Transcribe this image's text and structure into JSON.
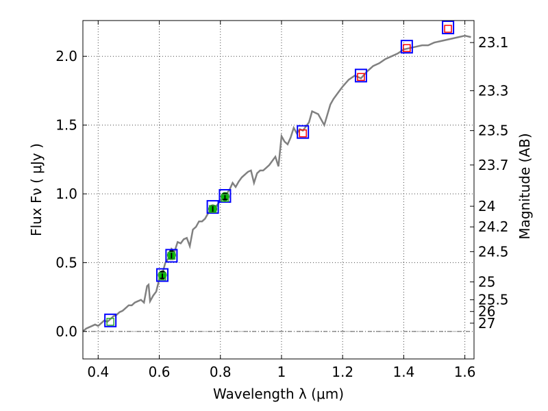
{
  "chart_data": {
    "type": "scatter",
    "title": "",
    "xlabel": "Wavelength  λ (μm)",
    "ylabel": "Flux  Fν  ( μJy )",
    "y2label": "Magnitude (AB)",
    "xlim": [
      0.35,
      1.63
    ],
    "ylim": [
      -0.2,
      2.26
    ],
    "grid": true,
    "legend": "none",
    "x_ticks": [
      0.4,
      0.6,
      0.8,
      1.0,
      1.2,
      1.4,
      1.6
    ],
    "x_tick_labels": [
      "0.4",
      "0.6",
      "0.8",
      "1",
      "1.2",
      "1.4",
      "1.6"
    ],
    "y_ticks": [
      0.0,
      0.5,
      1.0,
      1.5,
      2.0
    ],
    "y_tick_labels": [
      "0.0",
      "0.5",
      "1.0",
      "1.5",
      "2.0"
    ],
    "y2_ticks": [
      {
        "flux": 2.1,
        "label": "23.1"
      },
      {
        "flux": 1.75,
        "label": "23.3"
      },
      {
        "flux": 1.46,
        "label": "23.5"
      },
      {
        "flux": 1.21,
        "label": "23.7"
      },
      {
        "flux": 0.91,
        "label": "24"
      },
      {
        "flux": 0.76,
        "label": "24.2"
      },
      {
        "flux": 0.58,
        "label": "24.5"
      },
      {
        "flux": 0.36,
        "label": "25"
      },
      {
        "flux": 0.23,
        "label": "25.5"
      },
      {
        "flux": 0.145,
        "label": "26"
      },
      {
        "flux": 0.06,
        "label": "27"
      }
    ],
    "colors": {
      "model": "#808080",
      "observed": "#00bb00",
      "model_box": "#0000ff",
      "inner_green": "#33aa33",
      "inner_red": "#ff0000",
      "grid": "#444444"
    },
    "series": [
      {
        "type": "line",
        "x": [
          0.35,
          0.36,
          0.37,
          0.38,
          0.39,
          0.4,
          0.41,
          0.42,
          0.43,
          0.44,
          0.45,
          0.46,
          0.47,
          0.48,
          0.49,
          0.5,
          0.51,
          0.52,
          0.53,
          0.54,
          0.55,
          0.56,
          0.565,
          0.57,
          0.58,
          0.59,
          0.6,
          0.61,
          0.62,
          0.63,
          0.64,
          0.65,
          0.66,
          0.67,
          0.68,
          0.69,
          0.7,
          0.71,
          0.72,
          0.73,
          0.74,
          0.75,
          0.76,
          0.77,
          0.78,
          0.79,
          0.8,
          0.81,
          0.82,
          0.83,
          0.84,
          0.85,
          0.86,
          0.87,
          0.88,
          0.89,
          0.9,
          0.91,
          0.92,
          0.93,
          0.94,
          0.95,
          0.96,
          0.97,
          0.98,
          0.99,
          1.0,
          1.01,
          1.02,
          1.03,
          1.04,
          1.05,
          1.06,
          1.07,
          1.08,
          1.09,
          1.1,
          1.12,
          1.14,
          1.16,
          1.17,
          1.18,
          1.19,
          1.2,
          1.22,
          1.24,
          1.26,
          1.28,
          1.3,
          1.32,
          1.34,
          1.36,
          1.38,
          1.4,
          1.42,
          1.44,
          1.46,
          1.48,
          1.5,
          1.52,
          1.54,
          1.56,
          1.58,
          1.6,
          1.62
        ],
        "y": [
          0.0,
          0.02,
          0.03,
          0.04,
          0.05,
          0.04,
          0.06,
          0.08,
          0.07,
          0.09,
          0.11,
          0.12,
          0.14,
          0.15,
          0.17,
          0.19,
          0.19,
          0.21,
          0.22,
          0.23,
          0.21,
          0.33,
          0.34,
          0.22,
          0.26,
          0.29,
          0.38,
          0.42,
          0.5,
          0.53,
          0.6,
          0.58,
          0.65,
          0.64,
          0.67,
          0.68,
          0.62,
          0.74,
          0.76,
          0.8,
          0.8,
          0.82,
          0.86,
          0.89,
          0.88,
          0.92,
          0.95,
          0.97,
          1.0,
          1.03,
          1.08,
          1.05,
          1.09,
          1.12,
          1.14,
          1.16,
          1.17,
          1.08,
          1.15,
          1.17,
          1.17,
          1.19,
          1.21,
          1.24,
          1.27,
          1.2,
          1.42,
          1.38,
          1.36,
          1.41,
          1.48,
          1.44,
          1.47,
          1.46,
          1.49,
          1.52,
          1.6,
          1.58,
          1.5,
          1.65,
          1.69,
          1.72,
          1.75,
          1.78,
          1.83,
          1.86,
          1.84,
          1.89,
          1.93,
          1.95,
          1.98,
          2.0,
          2.02,
          2.05,
          2.06,
          2.07,
          2.08,
          2.08,
          2.1,
          2.11,
          2.12,
          2.13,
          2.14,
          2.15,
          2.14
        ]
      },
      {
        "type": "scatter",
        "x": [
          0.61,
          0.64,
          0.775,
          0.815
        ],
        "y": [
          0.41,
          0.555,
          0.89,
          0.98
        ],
        "yerr": [
          0.025,
          0.03,
          0.025,
          0.02
        ]
      },
      {
        "type": "scatter",
        "x": [
          0.44,
          0.61,
          0.64,
          0.775,
          0.815,
          1.07,
          1.26,
          1.41,
          1.545
        ],
        "y": [
          0.08,
          0.41,
          0.55,
          0.905,
          0.985,
          1.45,
          1.86,
          2.07,
          2.21
        ],
        "inner_y": [
          0.07,
          0.4,
          0.55,
          0.89,
          0.97,
          1.44,
          1.85,
          2.06,
          2.2
        ],
        "inner": [
          "green",
          "green",
          "green",
          "green",
          "green",
          "red",
          "red",
          "red",
          "red"
        ]
      }
    ]
  }
}
